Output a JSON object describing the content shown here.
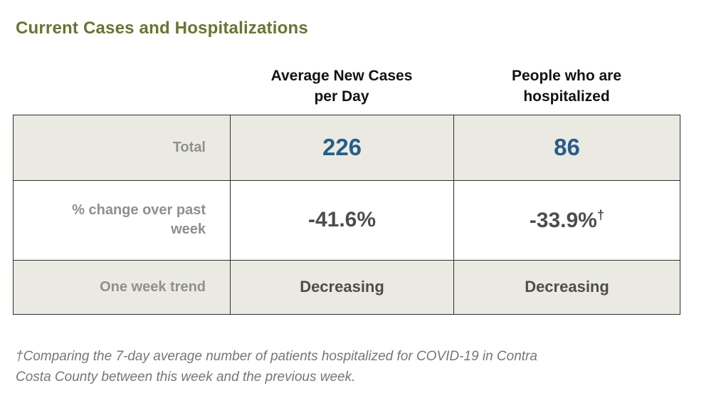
{
  "page": {
    "title": "Current Cases and Hospitalizations"
  },
  "table": {
    "column_headers": [
      "Average New Cases per Day",
      "People who are hospitalized"
    ],
    "rows": [
      {
        "label": "Total",
        "values": [
          "226",
          "86"
        ],
        "notes": [
          "",
          ""
        ]
      },
      {
        "label": "% change over past week",
        "values": [
          "-41.6%",
          "-33.9%"
        ],
        "notes": [
          "",
          "†"
        ]
      },
      {
        "label": "One week trend",
        "values": [
          "Decreasing",
          "Decreasing"
        ],
        "notes": [
          "",
          ""
        ]
      }
    ]
  },
  "footnote": "†Comparing the 7-day average number of patients hospitalized for COVID-19 in Contra Costa County between this week and the previous week.",
  "colors": {
    "title": "#6b7331",
    "value_highlight": "#265d8a",
    "row_label": "#8f8f8f",
    "value_text": "#4d4d4d",
    "shaded_row_bg": "#ebeae2",
    "border": "#2e2e2e"
  },
  "chart_data": {
    "type": "table",
    "title": "Current Cases and Hospitalizations",
    "columns": [
      "",
      "Average New Cases per Day",
      "People who are hospitalized"
    ],
    "rows": [
      [
        "Total",
        "226",
        "86"
      ],
      [
        "% change over past week",
        "-41.6%",
        "-33.9%†"
      ],
      [
        "One week trend",
        "Decreasing",
        "Decreasing"
      ]
    ],
    "footnote": "†Comparing the 7-day average number of patients hospitalized for COVID-19 in Contra Costa County between this week and the previous week."
  }
}
